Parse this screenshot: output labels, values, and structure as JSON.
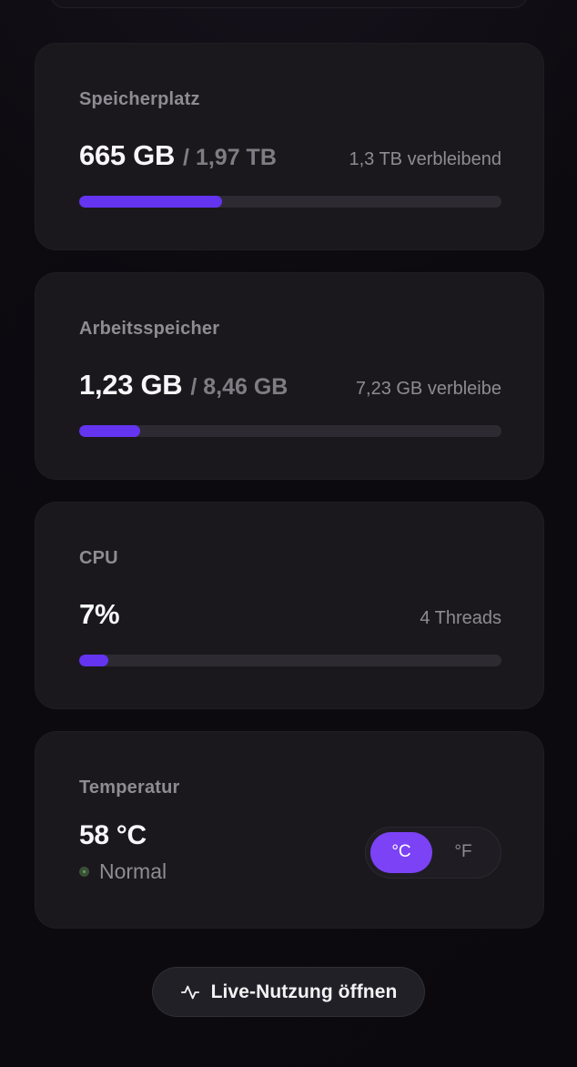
{
  "theme": {
    "page_bg": "#0c0a0f",
    "card_bg": "#1a181d",
    "track_bg": "#2d2b31",
    "accent": "#6434f0",
    "toggle_accent": "#7c42f5",
    "status_green": "#5ca45f",
    "text_primary": "#f7f6f8",
    "text_secondary": "#8e8b92",
    "text_tertiary": "#7f7c83"
  },
  "cards": [
    {
      "title": "Speicherplatz",
      "value": "665 GB",
      "total": "/ 1,97 TB",
      "right_label": "1,3 TB verbleibend",
      "progress_pct": 33.8
    },
    {
      "title": "Arbeitsspeicher",
      "value": "1,23 GB",
      "total": "/ 8,46 GB",
      "right_label": "7,23 GB verbleibe",
      "progress_pct": 14.5
    },
    {
      "title": "CPU",
      "value": "7%",
      "total": "",
      "right_label": "4 Threads",
      "progress_pct": 7
    }
  ],
  "temperature": {
    "title": "Temperatur",
    "value": "58 °C",
    "status": "Normal",
    "celsius_label": "°C",
    "fahrenheit_label": "°F",
    "selected_unit": "°C"
  },
  "footer": {
    "live_button_label": "Live-Nutzung öffnen",
    "live_button_icon": "activity-pulse-icon"
  }
}
